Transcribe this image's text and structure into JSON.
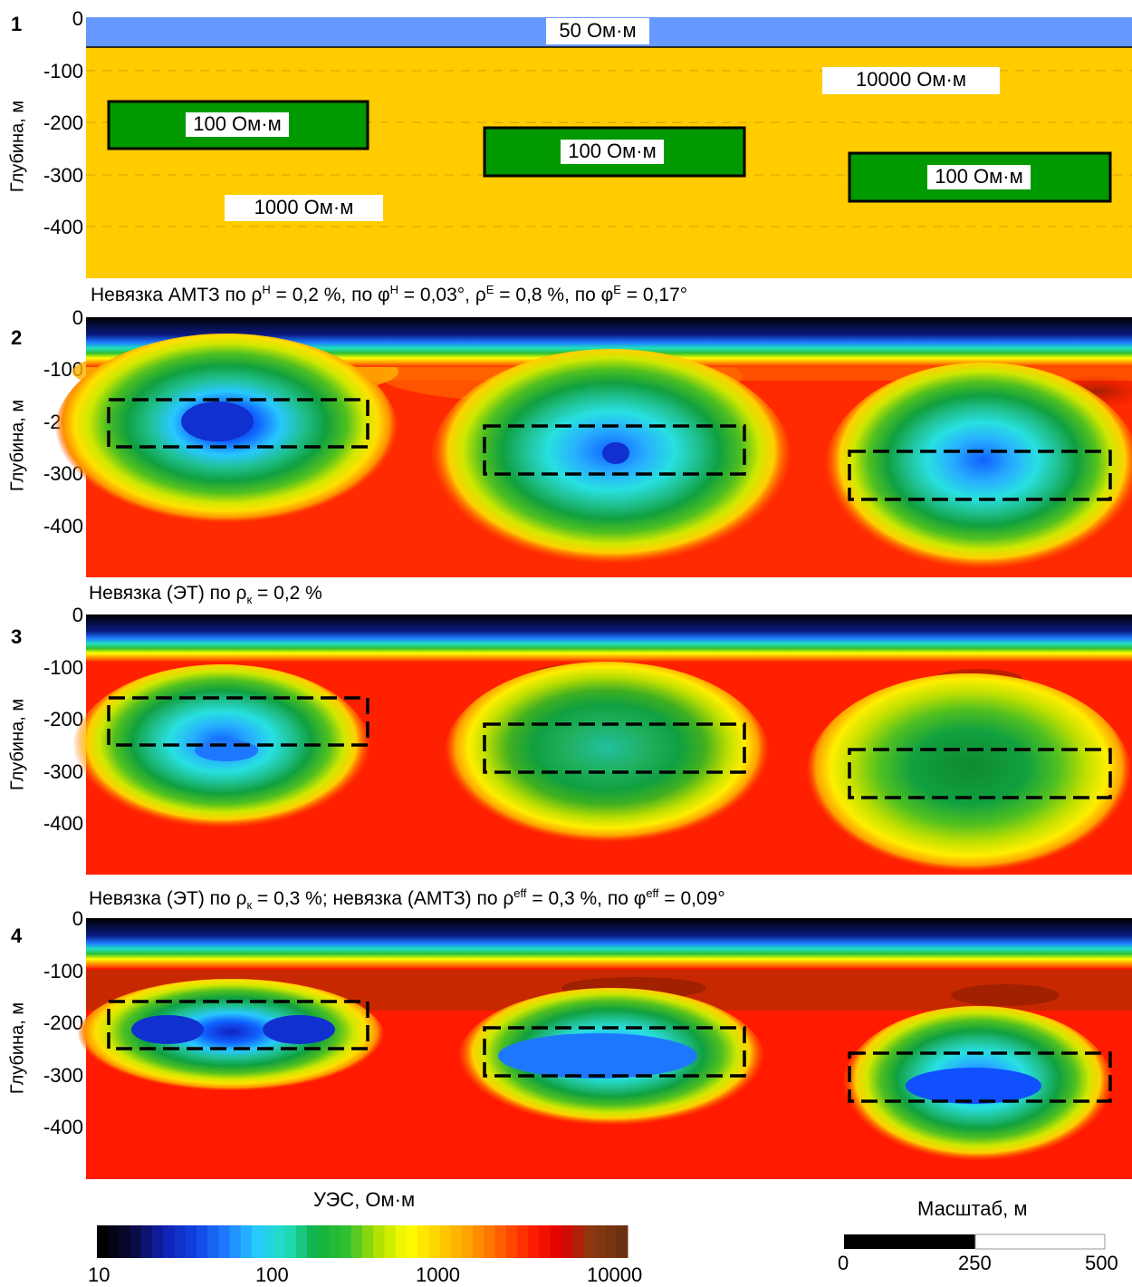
{
  "panels": [
    {
      "number": "1",
      "ylabel": "Глубина, м",
      "ticks": [
        "0",
        "-100",
        "-200",
        "-300",
        "-400"
      ]
    },
    {
      "number": "2",
      "ylabel": "Глубина, м",
      "ticks": [
        "0",
        "-100",
        "-200",
        "-300",
        "-400"
      ]
    },
    {
      "number": "3",
      "ylabel": "Глубина, м",
      "ticks": [
        "0",
        "-100",
        "-200",
        "-300",
        "-400"
      ]
    },
    {
      "number": "4",
      "ylabel": "Глубина, м",
      "ticks": [
        "0",
        "-100",
        "-200",
        "-300",
        "-400"
      ]
    }
  ],
  "model": {
    "top_layer": "50 Ом·м",
    "background_high": "10000 Ом·м",
    "background_low": "1000 Ом·м",
    "block_label": "100 Ом·м"
  },
  "captions": {
    "c2": {
      "a": "Невязка АМТЗ по ρ",
      "s1": "H",
      "b": " = 0,2 %, по φ",
      "s2": "H",
      "c": " = 0,03°, ρ",
      "s3": "E",
      "d": " = 0,8 %, по φ",
      "s4": "E",
      "e": " = 0,17°"
    },
    "c3": {
      "a": "Невязка (ЭТ) по ρ",
      "sub": "к",
      "b": " = 0,2 %"
    },
    "c4": {
      "a": "Невязка (ЭТ) по ρ",
      "sub": "к",
      "b": " = 0,3 %; невязка (АМТЗ) по ρ",
      "s1": "eff",
      "c": " = 0,3 %, по φ",
      "s2": "eff",
      "d": " = 0,09°"
    }
  },
  "colorbar": {
    "title": "УЭС, Ом·м",
    "ticks": [
      "10",
      "100",
      "1000",
      "10000"
    ],
    "colors": [
      "#000000",
      "#0a0a3c",
      "#1020b0",
      "#1040e0",
      "#1e78ff",
      "#28c8ff",
      "#20e0c0",
      "#10b040",
      "#30c030",
      "#b0e000",
      "#ffff00",
      "#ffd000",
      "#ffa000",
      "#ff6000",
      "#ff2000",
      "#e00000",
      "#8a3a10",
      "#6a3010"
    ]
  },
  "scale": {
    "title": "Масштаб, м",
    "ticks": [
      "0",
      "250",
      "500"
    ]
  },
  "colors": {
    "water": "#6699ff",
    "yellow": "#ffcc00",
    "block": "#009900",
    "red": "#ff1a00",
    "darkred": "#c02000"
  }
}
